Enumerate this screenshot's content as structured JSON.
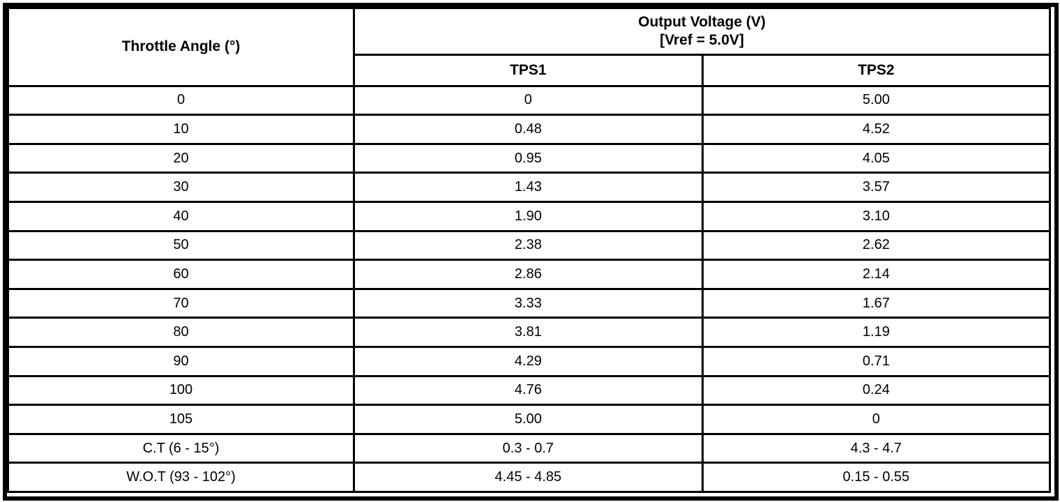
{
  "table": {
    "angle_header": "Throttle Angle (°)",
    "voltage_header_line1": "Output Voltage (V)",
    "voltage_header_line2": "[Vref = 5.0V]",
    "sub_headers": {
      "tps1": "TPS1",
      "tps2": "TPS2"
    },
    "rows": [
      {
        "angle": "0",
        "tps1": "0",
        "tps2": "5.00"
      },
      {
        "angle": "10",
        "tps1": "0.48",
        "tps2": "4.52"
      },
      {
        "angle": "20",
        "tps1": "0.95",
        "tps2": "4.05"
      },
      {
        "angle": "30",
        "tps1": "1.43",
        "tps2": "3.57"
      },
      {
        "angle": "40",
        "tps1": "1.90",
        "tps2": "3.10"
      },
      {
        "angle": "50",
        "tps1": "2.38",
        "tps2": "2.62"
      },
      {
        "angle": "60",
        "tps1": "2.86",
        "tps2": "2.14"
      },
      {
        "angle": "70",
        "tps1": "3.33",
        "tps2": "1.67"
      },
      {
        "angle": "80",
        "tps1": "3.81",
        "tps2": "1.19"
      },
      {
        "angle": "90",
        "tps1": "4.29",
        "tps2": "0.71"
      },
      {
        "angle": "100",
        "tps1": "4.76",
        "tps2": "0.24"
      },
      {
        "angle": "105",
        "tps1": "5.00",
        "tps2": "0"
      },
      {
        "angle": "C.T (6 - 15°)",
        "tps1": "0.3 - 0.7",
        "tps2": "4.3 - 4.7"
      },
      {
        "angle": "W.O.T (93 - 102°)",
        "tps1": "4.45 - 4.85",
        "tps2": "0.15 - 0.55"
      }
    ]
  },
  "colors": {
    "border": "#000000",
    "background": "#ffffff",
    "text": "#000000"
  }
}
